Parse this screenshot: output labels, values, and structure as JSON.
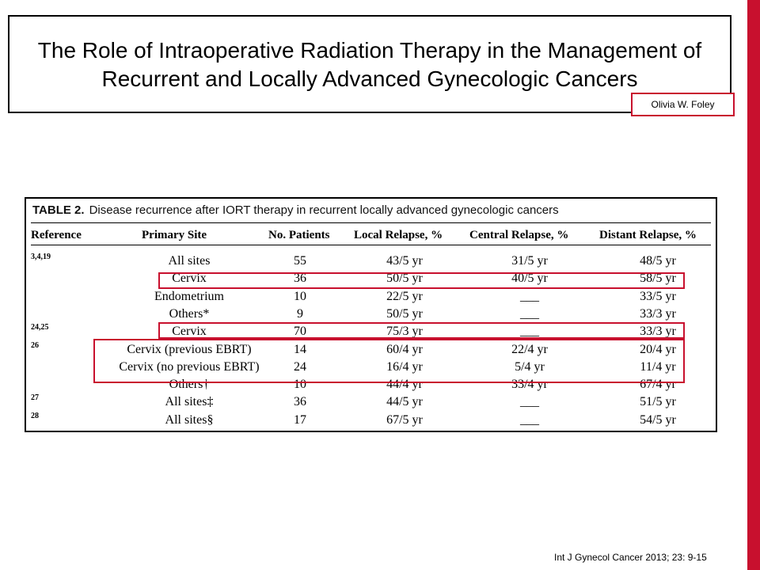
{
  "slide": {
    "title": "The Role of Intraoperative Radiation Therapy in the Management of Recurrent and Locally Advanced Gynecologic Cancers",
    "author": "Olivia W. Foley",
    "citation": "Int J Gynecol Cancer 2013; 23: 9-15",
    "accent_color": "#c8102e"
  },
  "table": {
    "label": "TABLE 2.",
    "caption": "Disease recurrence after IORT therapy in recurrent locally advanced gynecologic cancers",
    "headers": {
      "reference": "Reference",
      "site": "Primary Site",
      "patients": "No. Patients",
      "local": "Local Relapse, %",
      "central": "Central Relapse, %",
      "distant": "Distant Relapse, %"
    },
    "rows": [
      {
        "ref": "3,4,19",
        "site": "All sites",
        "patients": "55",
        "local": "43/5 yr",
        "central": "31/5 yr",
        "distant": "48/5 yr"
      },
      {
        "ref": "",
        "site": "Cervix",
        "patients": "36",
        "local": "50/5 yr",
        "central": "40/5 yr",
        "distant": "58/5 yr"
      },
      {
        "ref": "",
        "site": "Endometrium",
        "patients": "10",
        "local": "22/5 yr",
        "central": "___",
        "distant": "33/5 yr"
      },
      {
        "ref": "",
        "site": "Others*",
        "patients": "9",
        "local": "50/5 yr",
        "central": "___",
        "distant": "33/3 yr"
      },
      {
        "ref": "24,25",
        "site": "Cervix",
        "patients": "70",
        "local": "75/3 yr",
        "central": "___",
        "distant": "33/3 yr"
      },
      {
        "ref": "26",
        "site": "Cervix (previous EBRT)",
        "patients": "14",
        "local": "60/4 yr",
        "central": "22/4 yr",
        "distant": "20/4 yr"
      },
      {
        "ref": "",
        "site": "Cervix (no previous EBRT)",
        "patients": "24",
        "local": "16/4 yr",
        "central": "5/4 yr",
        "distant": "11/4 yr"
      },
      {
        "ref": "",
        "site": "Others†",
        "patients": "10",
        "local": "44/4 yr",
        "central": "33/4 yr",
        "distant": "67/4 yr"
      },
      {
        "ref": "27",
        "site": "All sites‡",
        "patients": "36",
        "local": "44/5 yr",
        "central": "___",
        "distant": "51/5 yr"
      },
      {
        "ref": "28",
        "site": "All sites§",
        "patients": "17",
        "local": "67/5 yr",
        "central": "___",
        "distant": "54/5 yr"
      }
    ]
  }
}
